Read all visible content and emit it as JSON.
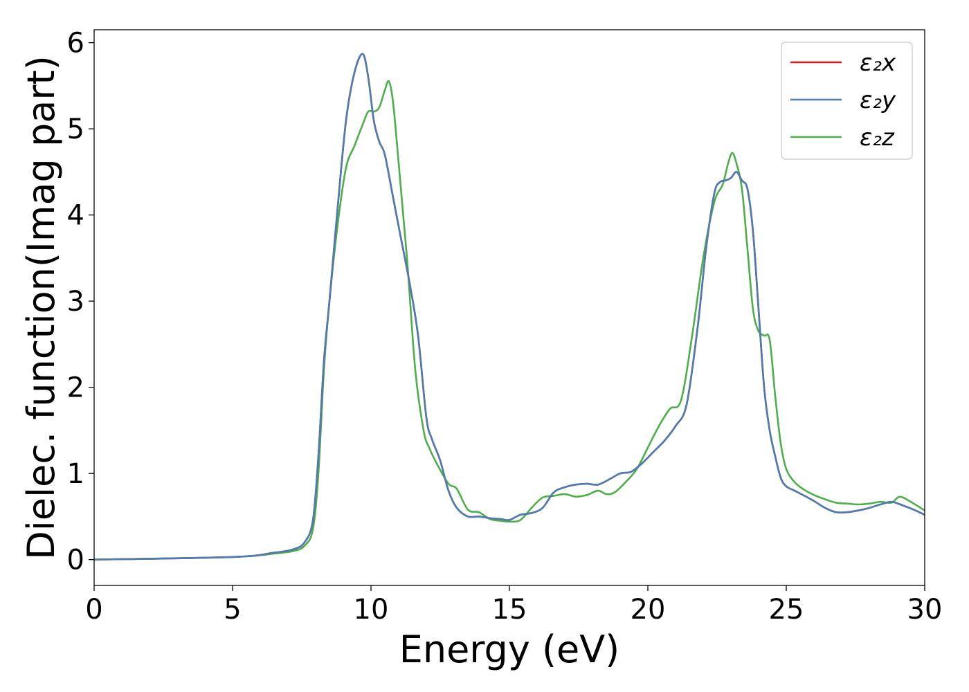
{
  "chart_data": {
    "type": "line",
    "xlabel": "Energy (eV)",
    "ylabel": "Dielec. function(Imag part)",
    "xlim": [
      0,
      30
    ],
    "ylim": [
      -0.3,
      6.15
    ],
    "xticks": [
      0,
      5,
      10,
      15,
      20,
      25,
      30
    ],
    "yticks": [
      0,
      1,
      2,
      3,
      4,
      5,
      6
    ],
    "grid": false,
    "legend_position": "top-right",
    "series": [
      {
        "name": "ε₂x",
        "color": "#e41a1c",
        "x": [
          0,
          5,
          6.5,
          7.2,
          7.6,
          7.9,
          8.1,
          8.3,
          8.5,
          8.8,
          9.1,
          9.4,
          9.7,
          9.9,
          10.1,
          10.3,
          10.5,
          10.8,
          11.1,
          11.4,
          11.7,
          12.0,
          12.2,
          12.5,
          12.8,
          13.1,
          13.5,
          13.9,
          14.3,
          14.7,
          15.0,
          15.4,
          15.8,
          16.2,
          16.6,
          17.0,
          17.4,
          17.8,
          18.2,
          18.6,
          19.0,
          19.4,
          19.8,
          20.2,
          20.6,
          21.0,
          21.4,
          21.8,
          22.1,
          22.4,
          22.6,
          22.8,
          23.0,
          23.2,
          23.4,
          23.6,
          23.8,
          24.0,
          24.2,
          24.4,
          24.6,
          24.8,
          25.0,
          25.3,
          25.6,
          26.0,
          26.4,
          26.8,
          27.2,
          27.6,
          28.0,
          28.4,
          28.8,
          29.2,
          29.6,
          30.0
        ],
        "y": [
          0.0,
          0.03,
          0.08,
          0.12,
          0.2,
          0.45,
          1.2,
          2.3,
          3.0,
          4.1,
          5.1,
          5.65,
          5.87,
          5.6,
          5.1,
          4.85,
          4.7,
          4.2,
          3.7,
          3.2,
          2.6,
          1.65,
          1.4,
          1.15,
          0.8,
          0.6,
          0.5,
          0.5,
          0.48,
          0.47,
          0.46,
          0.52,
          0.54,
          0.6,
          0.78,
          0.84,
          0.87,
          0.88,
          0.87,
          0.93,
          1.0,
          1.02,
          1.12,
          1.25,
          1.38,
          1.55,
          1.8,
          2.7,
          3.6,
          4.25,
          4.38,
          4.4,
          4.43,
          4.5,
          4.4,
          4.3,
          3.8,
          2.9,
          2.0,
          1.5,
          1.2,
          0.95,
          0.85,
          0.8,
          0.75,
          0.68,
          0.6,
          0.55,
          0.55,
          0.57,
          0.6,
          0.64,
          0.67,
          0.63,
          0.58,
          0.52
        ]
      },
      {
        "name": "ε₂y",
        "color": "#4a7db5",
        "x": [
          0,
          5,
          6.5,
          7.2,
          7.6,
          7.9,
          8.1,
          8.3,
          8.5,
          8.8,
          9.1,
          9.4,
          9.7,
          9.9,
          10.1,
          10.3,
          10.5,
          10.8,
          11.1,
          11.4,
          11.7,
          12.0,
          12.2,
          12.5,
          12.8,
          13.1,
          13.5,
          13.9,
          14.3,
          14.7,
          15.0,
          15.4,
          15.8,
          16.2,
          16.6,
          17.0,
          17.4,
          17.8,
          18.2,
          18.6,
          19.0,
          19.4,
          19.8,
          20.2,
          20.6,
          21.0,
          21.4,
          21.8,
          22.1,
          22.4,
          22.6,
          22.8,
          23.0,
          23.2,
          23.4,
          23.6,
          23.8,
          24.0,
          24.2,
          24.4,
          24.6,
          24.8,
          25.0,
          25.3,
          25.6,
          26.0,
          26.4,
          26.8,
          27.2,
          27.6,
          28.0,
          28.4,
          28.8,
          29.2,
          29.6,
          30.0
        ],
        "y": [
          0.0,
          0.03,
          0.08,
          0.12,
          0.2,
          0.45,
          1.2,
          2.3,
          3.0,
          4.1,
          5.1,
          5.65,
          5.87,
          5.6,
          5.1,
          4.85,
          4.7,
          4.2,
          3.7,
          3.2,
          2.6,
          1.65,
          1.4,
          1.15,
          0.8,
          0.6,
          0.5,
          0.5,
          0.48,
          0.47,
          0.46,
          0.52,
          0.54,
          0.6,
          0.78,
          0.84,
          0.87,
          0.88,
          0.87,
          0.93,
          1.0,
          1.02,
          1.12,
          1.25,
          1.38,
          1.55,
          1.8,
          2.7,
          3.6,
          4.25,
          4.38,
          4.4,
          4.43,
          4.5,
          4.4,
          4.3,
          3.8,
          2.9,
          2.0,
          1.5,
          1.2,
          0.95,
          0.85,
          0.8,
          0.75,
          0.68,
          0.6,
          0.55,
          0.55,
          0.57,
          0.6,
          0.64,
          0.67,
          0.63,
          0.58,
          0.52
        ]
      },
      {
        "name": "ε₂z",
        "color": "#4daf4a",
        "x": [
          0,
          5,
          6.5,
          7.2,
          7.6,
          7.9,
          8.1,
          8.3,
          8.5,
          8.8,
          9.1,
          9.4,
          9.7,
          9.9,
          10.1,
          10.3,
          10.5,
          10.65,
          10.8,
          11.0,
          11.3,
          11.6,
          11.9,
          12.1,
          12.4,
          12.8,
          13.1,
          13.5,
          13.9,
          14.3,
          14.7,
          15.0,
          15.4,
          15.8,
          16.2,
          16.6,
          17.0,
          17.4,
          17.8,
          18.2,
          18.5,
          18.8,
          19.2,
          19.6,
          20.0,
          20.4,
          20.8,
          21.2,
          21.6,
          22.0,
          22.4,
          22.7,
          22.9,
          23.05,
          23.2,
          23.4,
          23.6,
          23.8,
          24.0,
          24.2,
          24.4,
          24.6,
          24.8,
          25.0,
          25.3,
          25.6,
          26.0,
          26.4,
          26.8,
          27.2,
          27.6,
          28.0,
          28.4,
          28.8,
          29.1,
          29.5,
          30.0
        ],
        "y": [
          0.0,
          0.03,
          0.07,
          0.1,
          0.16,
          0.35,
          1.0,
          2.2,
          3.0,
          3.9,
          4.55,
          4.8,
          5.05,
          5.2,
          5.2,
          5.25,
          5.45,
          5.55,
          5.3,
          4.6,
          3.5,
          2.2,
          1.5,
          1.3,
          1.1,
          0.88,
          0.82,
          0.58,
          0.55,
          0.47,
          0.45,
          0.44,
          0.46,
          0.6,
          0.72,
          0.74,
          0.76,
          0.73,
          0.75,
          0.8,
          0.76,
          0.78,
          0.9,
          1.05,
          1.3,
          1.55,
          1.75,
          1.85,
          2.6,
          3.5,
          4.15,
          4.35,
          4.6,
          4.72,
          4.6,
          4.3,
          3.6,
          2.9,
          2.65,
          2.6,
          2.55,
          1.9,
          1.35,
          1.05,
          0.9,
          0.82,
          0.75,
          0.7,
          0.66,
          0.65,
          0.64,
          0.65,
          0.67,
          0.66,
          0.73,
          0.67,
          0.57
        ]
      }
    ]
  }
}
